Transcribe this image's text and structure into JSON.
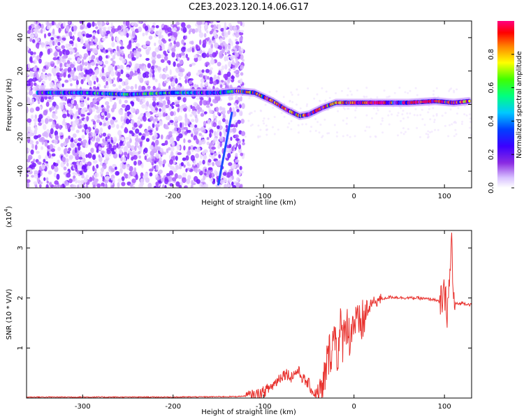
{
  "figure": {
    "title": "C2E3.2023.120.14.06.G17"
  },
  "chart_data": [
    {
      "type": "heatmap",
      "xlabel": "Height of straight line (km)",
      "ylabel": "Frequency (Hz)",
      "xlim": [
        -362,
        130
      ],
      "ylim": [
        -50,
        50
      ],
      "xticks": [
        -300,
        -200,
        -100,
        0,
        100
      ],
      "yticks": [
        -40,
        -20,
        0,
        20,
        40
      ],
      "colorbar": {
        "label": "Normalized spectral amplitude",
        "range": [
          0.0,
          1.0
        ],
        "ticks": [
          0.0,
          0.2,
          0.4,
          0.6,
          0.8
        ],
        "colormap": [
          "#ffffff",
          "#e6d2ff",
          "#9b3cff",
          "#5a00ff",
          "#0000ff",
          "#00c8ff",
          "#00ff80",
          "#40ff00",
          "#ffff00",
          "#ff8000",
          "#ff0000",
          "#ff0080"
        ]
      },
      "ridge": [
        {
          "x": -350,
          "y": 7,
          "amp": 0.5
        },
        {
          "x": -300,
          "y": 7,
          "amp": 0.5
        },
        {
          "x": -250,
          "y": 6,
          "amp": 0.55
        },
        {
          "x": -200,
          "y": 7,
          "amp": 0.55
        },
        {
          "x": -150,
          "y": 7,
          "amp": 0.5
        },
        {
          "x": -130,
          "y": 8,
          "amp": 0.7
        },
        {
          "x": -110,
          "y": 7,
          "amp": 0.75
        },
        {
          "x": -90,
          "y": 2,
          "amp": 0.8
        },
        {
          "x": -75,
          "y": -3,
          "amp": 0.85
        },
        {
          "x": -60,
          "y": -7,
          "amp": 0.8
        },
        {
          "x": -50,
          "y": -6,
          "amp": 0.9
        },
        {
          "x": -35,
          "y": -2,
          "amp": 0.85
        },
        {
          "x": -20,
          "y": 1,
          "amp": 0.8
        },
        {
          "x": 0,
          "y": 1,
          "amp": 0.9
        },
        {
          "x": 30,
          "y": 1,
          "amp": 0.95
        },
        {
          "x": 60,
          "y": 1,
          "amp": 0.9
        },
        {
          "x": 90,
          "y": 2,
          "amp": 0.95
        },
        {
          "x": 110,
          "y": 1,
          "amp": 0.9
        },
        {
          "x": 128,
          "y": 2,
          "amp": 0.8
        }
      ],
      "streak": [
        {
          "x": -150,
          "y": -48
        },
        {
          "x": -135,
          "y": -5
        }
      ]
    },
    {
      "type": "line",
      "xlabel": "Height of straight line (km)",
      "ylabel": "SNR (10 * V/V)",
      "yscale_label": "(x10",
      "yscale_exp": "4",
      "yscale_close": ")",
      "xlim": [
        -362,
        130
      ],
      "ylim": [
        0,
        3.35
      ],
      "xticks": [
        -300,
        -200,
        -100,
        0,
        100
      ],
      "yticks": [
        1,
        2,
        3
      ],
      "color": "#e8322e",
      "series": [
        {
          "x": [
            -362,
            -300,
            -200,
            -130,
            -110,
            -100,
            -90,
            -80,
            -75,
            -70,
            -62,
            -55,
            -50,
            -45,
            -40,
            -35,
            -32,
            -28,
            -25,
            -20,
            -18,
            -15,
            -12,
            -10,
            -5,
            0,
            5,
            10,
            20,
            30,
            40,
            50,
            60,
            70,
            80,
            90,
            95,
            100,
            103,
            106,
            108,
            110,
            115,
            120,
            130
          ],
          "y": [
            0.02,
            0.02,
            0.02,
            0.03,
            0.05,
            0.12,
            0.25,
            0.45,
            0.5,
            0.42,
            0.55,
            0.35,
            0.28,
            0.1,
            0.08,
            0.06,
            0.5,
            0.85,
            1.0,
            1.35,
            0.7,
            1.4,
            1.1,
            1.6,
            1.25,
            1.55,
            1.4,
            1.55,
            1.9,
            1.98,
            2.02,
            2.01,
            2.0,
            2.0,
            1.98,
            1.97,
            1.9,
            2.05,
            1.75,
            2.4,
            3.2,
            1.9,
            1.88,
            1.9,
            1.86
          ]
        }
      ]
    }
  ]
}
